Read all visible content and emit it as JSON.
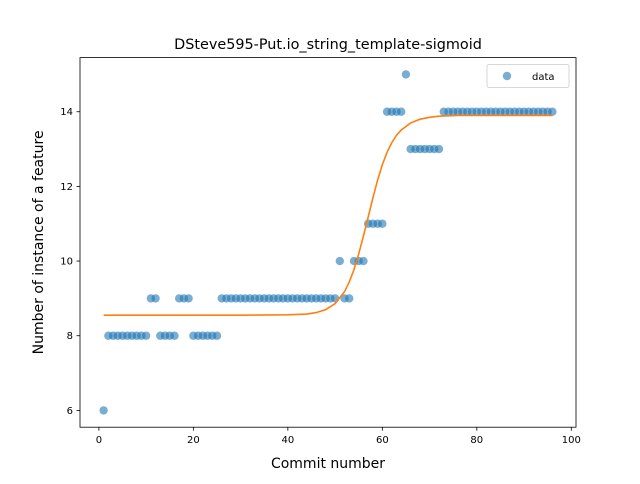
{
  "chart_data": {
    "type": "scatter",
    "title": "DSteve595-Put.io_string_template-sigmoid",
    "xlabel": "Commit number",
    "ylabel": "Number of instance of a feature",
    "xlim": [
      -4,
      101
    ],
    "ylim": [
      5.55,
      15.45
    ],
    "xticks": [
      0,
      20,
      40,
      60,
      80,
      100
    ],
    "yticks": [
      6,
      8,
      10,
      12,
      14
    ],
    "legend": {
      "position": "top-right",
      "entries": [
        "data"
      ]
    },
    "colors": {
      "data": "#1f77b4",
      "fit": "#ff7f0e"
    },
    "series": [
      {
        "name": "data",
        "kind": "scatter",
        "x": [
          1,
          2,
          3,
          4,
          5,
          6,
          7,
          8,
          9,
          10,
          11,
          12,
          13,
          14,
          15,
          16,
          17,
          18,
          19,
          20,
          21,
          22,
          23,
          24,
          25,
          26,
          27,
          28,
          29,
          30,
          31,
          32,
          33,
          34,
          35,
          36,
          37,
          38,
          39,
          40,
          41,
          42,
          43,
          44,
          45,
          46,
          47,
          48,
          49,
          50,
          51,
          52,
          53,
          54,
          55,
          56,
          57,
          58,
          59,
          60,
          61,
          62,
          63,
          64,
          65,
          66,
          67,
          68,
          69,
          70,
          71,
          72,
          73,
          74,
          75,
          76,
          77,
          78,
          79,
          80,
          81,
          82,
          83,
          84,
          85,
          86,
          87,
          88,
          89,
          90,
          91,
          92,
          93,
          94,
          95,
          96
        ],
        "y": [
          6,
          8,
          8,
          8,
          8,
          8,
          8,
          8,
          8,
          8,
          9,
          9,
          8,
          8,
          8,
          8,
          9,
          9,
          9,
          8,
          8,
          8,
          8,
          8,
          8,
          9,
          9,
          9,
          9,
          9,
          9,
          9,
          9,
          9,
          9,
          9,
          9,
          9,
          9,
          9,
          9,
          9,
          9,
          9,
          9,
          9,
          9,
          9,
          9,
          9,
          10,
          9,
          9,
          10,
          10,
          10,
          11,
          11,
          11,
          11,
          14,
          14,
          14,
          14,
          15,
          13,
          13,
          13,
          13,
          13,
          13,
          13,
          14,
          14,
          14,
          14,
          14,
          14,
          14,
          14,
          14,
          14,
          14,
          14,
          14,
          14,
          14,
          14,
          14,
          14,
          14,
          14,
          14,
          14,
          14,
          14
        ]
      },
      {
        "kind": "line",
        "x": [
          1,
          10,
          20,
          30,
          40,
          44,
          46,
          48,
          50,
          52,
          53,
          54,
          55,
          56,
          57,
          58,
          59,
          60,
          61,
          62,
          63,
          64,
          66,
          68,
          70,
          72,
          76,
          80,
          90,
          96
        ],
        "y": [
          8.55,
          8.55,
          8.55,
          8.55,
          8.56,
          8.58,
          8.62,
          8.7,
          8.86,
          9.18,
          9.44,
          9.77,
          10.19,
          10.67,
          11.18,
          11.69,
          12.17,
          12.58,
          12.91,
          13.17,
          13.37,
          13.51,
          13.7,
          13.8,
          13.85,
          13.88,
          13.9,
          13.9,
          13.9,
          13.9
        ]
      }
    ]
  }
}
